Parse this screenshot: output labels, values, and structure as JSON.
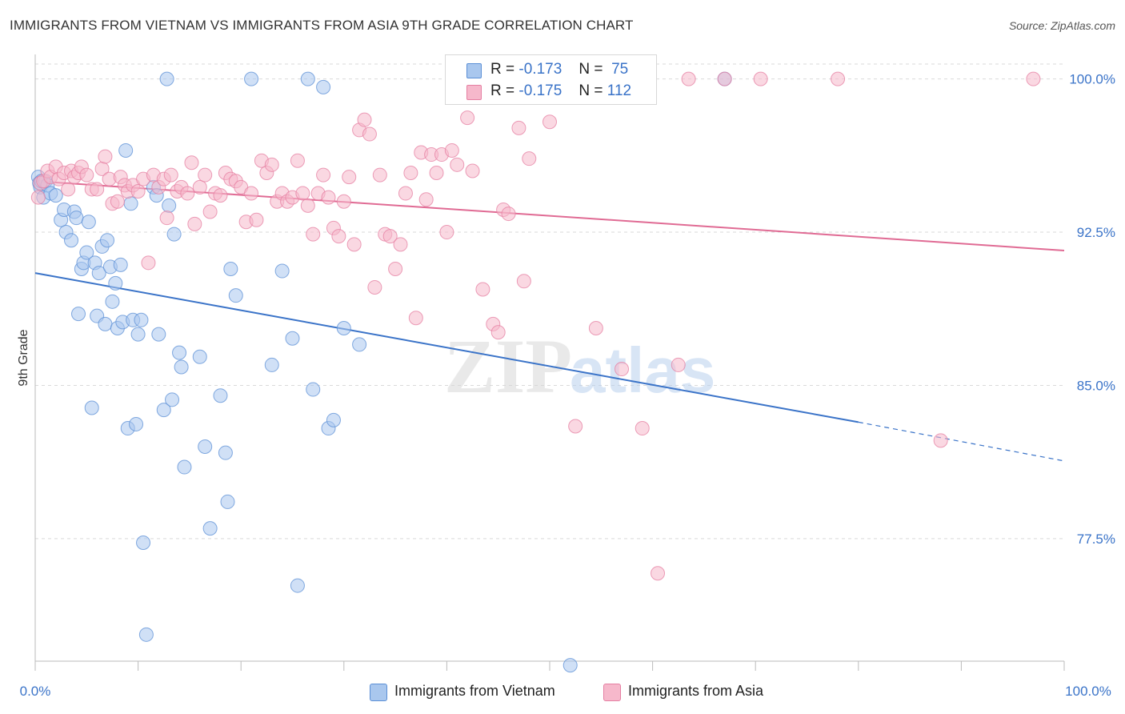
{
  "header": {
    "title": "IMMIGRANTS FROM VIETNAM VS IMMIGRANTS FROM ASIA 9TH GRADE CORRELATION CHART",
    "source": "Source: ZipAtlas.com"
  },
  "legend": {
    "rows": [
      {
        "r_label": "R =",
        "r_value": "-0.173",
        "n_label": "N =",
        "n_value": "75",
        "color": "#a9c7ee"
      },
      {
        "r_label": "R =",
        "r_value": "-0.175",
        "n_label": "N =",
        "n_value": "112",
        "color": "#f6b8cb"
      }
    ]
  },
  "chart_data": {
    "type": "scatter",
    "title": "IMMIGRANTS FROM VIETNAM VS IMMIGRANTS FROM ASIA 9TH GRADE CORRELATION CHART",
    "xlabel": "",
    "ylabel": "9th Grade",
    "xlim": [
      0,
      100
    ],
    "ylim": [
      71.5,
      101.2
    ],
    "x_tick_labels": [
      "0.0%",
      "100.0%"
    ],
    "y_ticks": [
      77.5,
      85.0,
      92.5,
      100.0
    ],
    "y_tick_labels": [
      "77.5%",
      "85.0%",
      "92.5%",
      "100.0%"
    ],
    "grid": "horizontal dashed",
    "watermark": "ZIPatlas",
    "series": [
      {
        "name": "Immigrants from Vietnam",
        "color": "#5b8fd6",
        "fill": "#a9c7ee",
        "trend": {
          "x0": 0,
          "y0": 90.5,
          "x1": 80,
          "y1": 83.2,
          "dash_to_x": 100,
          "dash_to_y": 81.3,
          "color": "#3a73c8"
        },
        "points": [
          [
            0.3,
            95.2
          ],
          [
            0.4,
            94.9
          ],
          [
            0.5,
            94.7
          ],
          [
            0.6,
            95.0
          ],
          [
            0.8,
            94.2
          ],
          [
            1.0,
            95.0
          ],
          [
            1.2,
            94.8
          ],
          [
            1.5,
            94.4
          ],
          [
            2.0,
            94.3
          ],
          [
            2.5,
            93.1
          ],
          [
            2.8,
            93.6
          ],
          [
            3.0,
            92.5
          ],
          [
            3.5,
            92.1
          ],
          [
            3.8,
            93.5
          ],
          [
            4.0,
            93.2
          ],
          [
            4.2,
            88.5
          ],
          [
            4.5,
            90.7
          ],
          [
            4.7,
            91.0
          ],
          [
            5.0,
            91.5
          ],
          [
            5.2,
            93.0
          ],
          [
            5.5,
            83.9
          ],
          [
            5.8,
            91.0
          ],
          [
            6.0,
            88.4
          ],
          [
            6.2,
            90.5
          ],
          [
            6.5,
            91.8
          ],
          [
            6.8,
            88.0
          ],
          [
            7.0,
            92.1
          ],
          [
            7.3,
            90.8
          ],
          [
            7.5,
            89.1
          ],
          [
            7.8,
            90.0
          ],
          [
            8.0,
            87.8
          ],
          [
            8.3,
            90.9
          ],
          [
            8.5,
            88.1
          ],
          [
            8.8,
            96.5
          ],
          [
            9.0,
            82.9
          ],
          [
            9.3,
            93.9
          ],
          [
            9.5,
            88.2
          ],
          [
            9.8,
            83.1
          ],
          [
            10.0,
            87.5
          ],
          [
            10.3,
            88.2
          ],
          [
            10.5,
            77.3
          ],
          [
            10.8,
            72.8
          ],
          [
            11.5,
            94.7
          ],
          [
            11.8,
            94.3
          ],
          [
            12.0,
            87.5
          ],
          [
            12.5,
            83.8
          ],
          [
            12.8,
            100.0
          ],
          [
            13.0,
            93.8
          ],
          [
            13.3,
            84.3
          ],
          [
            13.5,
            92.4
          ],
          [
            14.0,
            86.6
          ],
          [
            14.2,
            85.9
          ],
          [
            14.5,
            81.0
          ],
          [
            16.0,
            86.4
          ],
          [
            16.5,
            82.0
          ],
          [
            17.0,
            78.0
          ],
          [
            18.0,
            84.5
          ],
          [
            18.5,
            81.7
          ],
          [
            18.7,
            79.3
          ],
          [
            19.0,
            90.7
          ],
          [
            19.5,
            89.4
          ],
          [
            21.0,
            100.0
          ],
          [
            23.0,
            86.0
          ],
          [
            24.0,
            90.6
          ],
          [
            25.0,
            87.3
          ],
          [
            25.5,
            75.2
          ],
          [
            26.5,
            100.0
          ],
          [
            27.0,
            84.8
          ],
          [
            28.0,
            99.6
          ],
          [
            28.5,
            82.9
          ],
          [
            29.0,
            83.3
          ],
          [
            30.0,
            87.8
          ],
          [
            31.5,
            87.0
          ],
          [
            43.0,
            100.0
          ],
          [
            52.0,
            71.3
          ],
          [
            67.0,
            100.0
          ]
        ]
      },
      {
        "name": "Immigrants from Asia",
        "color": "#e57fa2",
        "fill": "#f6b8cb",
        "trend": {
          "x0": 0,
          "y0": 95.0,
          "x1": 100,
          "y1": 91.6,
          "color": "#e06b94"
        },
        "points": [
          [
            0.3,
            94.2
          ],
          [
            0.5,
            94.9
          ],
          [
            0.8,
            95.0
          ],
          [
            1.2,
            95.5
          ],
          [
            1.5,
            95.2
          ],
          [
            2.0,
            95.7
          ],
          [
            2.3,
            95.1
          ],
          [
            2.8,
            95.4
          ],
          [
            3.2,
            94.6
          ],
          [
            3.5,
            95.5
          ],
          [
            3.8,
            95.2
          ],
          [
            4.2,
            95.4
          ],
          [
            4.5,
            95.7
          ],
          [
            5.0,
            95.3
          ],
          [
            5.5,
            94.6
          ],
          [
            6.0,
            94.6
          ],
          [
            6.5,
            95.6
          ],
          [
            6.8,
            96.2
          ],
          [
            7.2,
            95.1
          ],
          [
            7.5,
            93.9
          ],
          [
            8.0,
            94.0
          ],
          [
            8.3,
            95.2
          ],
          [
            8.7,
            94.8
          ],
          [
            9.0,
            94.5
          ],
          [
            9.5,
            94.8
          ],
          [
            10.0,
            94.5
          ],
          [
            10.5,
            95.1
          ],
          [
            11.0,
            91.0
          ],
          [
            11.5,
            95.3
          ],
          [
            12.0,
            94.7
          ],
          [
            12.5,
            95.1
          ],
          [
            12.8,
            93.2
          ],
          [
            13.2,
            95.3
          ],
          [
            13.8,
            94.5
          ],
          [
            14.2,
            94.7
          ],
          [
            14.8,
            94.4
          ],
          [
            15.2,
            95.9
          ],
          [
            15.5,
            92.9
          ],
          [
            16.0,
            94.7
          ],
          [
            16.5,
            95.3
          ],
          [
            17.0,
            93.5
          ],
          [
            17.5,
            94.4
          ],
          [
            18.0,
            94.3
          ],
          [
            18.5,
            95.4
          ],
          [
            19.0,
            95.1
          ],
          [
            19.5,
            95.0
          ],
          [
            20.0,
            94.7
          ],
          [
            20.5,
            93.0
          ],
          [
            21.0,
            94.4
          ],
          [
            21.5,
            93.1
          ],
          [
            22.0,
            96.0
          ],
          [
            22.5,
            95.4
          ],
          [
            23.0,
            95.8
          ],
          [
            23.5,
            94.0
          ],
          [
            24.0,
            94.4
          ],
          [
            24.5,
            94.0
          ],
          [
            25.0,
            94.2
          ],
          [
            25.5,
            96.0
          ],
          [
            26.0,
            94.4
          ],
          [
            26.5,
            93.8
          ],
          [
            27.0,
            92.4
          ],
          [
            27.5,
            94.4
          ],
          [
            28.0,
            95.3
          ],
          [
            28.5,
            94.2
          ],
          [
            29.0,
            92.7
          ],
          [
            29.5,
            92.3
          ],
          [
            30.0,
            94.0
          ],
          [
            30.5,
            95.2
          ],
          [
            31.0,
            91.9
          ],
          [
            31.5,
            97.5
          ],
          [
            32.0,
            98.0
          ],
          [
            32.5,
            97.3
          ],
          [
            33.0,
            89.8
          ],
          [
            33.5,
            95.3
          ],
          [
            34.0,
            92.4
          ],
          [
            34.5,
            92.3
          ],
          [
            35.0,
            90.7
          ],
          [
            35.5,
            91.9
          ],
          [
            36.0,
            94.4
          ],
          [
            36.5,
            95.4
          ],
          [
            37.0,
            88.3
          ],
          [
            37.5,
            96.4
          ],
          [
            38.0,
            94.1
          ],
          [
            38.5,
            96.3
          ],
          [
            39.0,
            95.4
          ],
          [
            39.5,
            96.3
          ],
          [
            40.0,
            92.5
          ],
          [
            40.5,
            96.5
          ],
          [
            41.0,
            95.8
          ],
          [
            42.0,
            98.1
          ],
          [
            42.5,
            95.5
          ],
          [
            43.5,
            89.7
          ],
          [
            44.5,
            88.0
          ],
          [
            45.0,
            87.6
          ],
          [
            45.5,
            93.6
          ],
          [
            46.0,
            93.4
          ],
          [
            47.0,
            97.6
          ],
          [
            47.5,
            90.1
          ],
          [
            48.0,
            96.1
          ],
          [
            50.0,
            97.9
          ],
          [
            52.5,
            83.0
          ],
          [
            53.5,
            100.0
          ],
          [
            54.5,
            87.8
          ],
          [
            57.0,
            85.8
          ],
          [
            59.0,
            82.9
          ],
          [
            60.5,
            75.8
          ],
          [
            62.5,
            86.0
          ],
          [
            63.5,
            100.0
          ],
          [
            67.0,
            100.0
          ],
          [
            70.5,
            100.0
          ],
          [
            78.0,
            100.0
          ],
          [
            88.0,
            82.3
          ],
          [
            97.0,
            100.0
          ]
        ]
      }
    ]
  },
  "bottom_legend": [
    {
      "label": "Immigrants from Vietnam",
      "color": "#a9c7ee",
      "border": "#5b8fd6"
    },
    {
      "label": "Immigrants from Asia",
      "color": "#f6b8cb",
      "border": "#e57fa2"
    }
  ]
}
